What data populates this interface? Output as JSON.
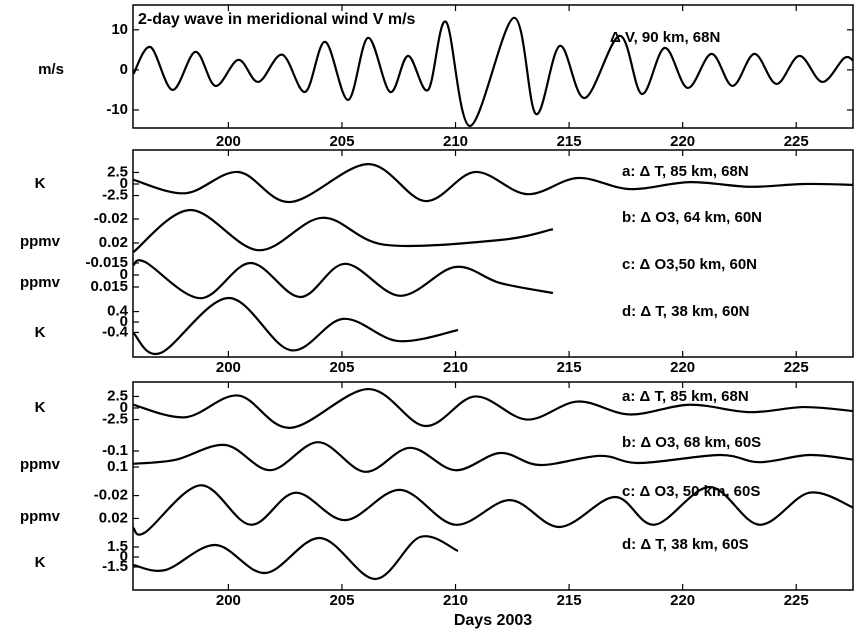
{
  "chart_data": [
    {
      "type": "line",
      "title": "2-day wave in meridional wind V m/s",
      "xlim": [
        195.8,
        227.5
      ],
      "xticks": [
        200,
        205,
        210,
        215,
        220,
        225
      ],
      "series": [
        {
          "name": "Δ V, 90 km, 68N",
          "color": "#000000",
          "ylabel": "m/s",
          "ylim": [
            -14.5,
            16.2
          ],
          "yticks": [
            -10,
            0,
            10
          ],
          "x": [
            195.82,
            196.57,
            197.54,
            198.55,
            199.43,
            200.44,
            201.32,
            202.37,
            203.38,
            204.26,
            205.27,
            206.15,
            207.12,
            207.91,
            208.79,
            209.58,
            210.64,
            212.57,
            213.54,
            214.59,
            215.69,
            217.23,
            218.2,
            219.21,
            220.22,
            221.27,
            222.2,
            223.16,
            224.13,
            225.14,
            226.15,
            227.12,
            227.56
          ],
          "values": [
            -1,
            5.7,
            -5,
            4.5,
            -4,
            2.5,
            -3,
            3.8,
            -5.5,
            7,
            -7.5,
            8,
            -5.5,
            3.5,
            -5,
            12,
            -14,
            13,
            -11,
            6,
            -7,
            8.5,
            -6,
            5.5,
            -4.5,
            4,
            -4,
            4,
            -3.5,
            3.5,
            -3,
            3,
            2
          ]
        }
      ]
    },
    {
      "type": "line",
      "xlim": [
        195.8,
        227.5
      ],
      "xticks": [
        200,
        205,
        210,
        215,
        220,
        225
      ],
      "series": [
        {
          "name": "a: Δ T, 85 km, 68N",
          "color": "#000000",
          "ylabel": "K",
          "ylim": [
            -5.2,
            5.2
          ],
          "yticks": [
            -2.5,
            0,
            2.5
          ],
          "x": [
            195.82,
            198.11,
            200.44,
            202.73,
            206.15,
            208.66,
            210.86,
            213.14,
            215.38,
            217.67,
            220.31,
            222.95,
            225.36,
            227.56
          ],
          "values": [
            0.9,
            -2,
            2.6,
            -3.9,
            4.3,
            -3.7,
            2.6,
            -2.2,
            1.3,
            -1.1,
            0.4,
            -0.6,
            0,
            -0.2
          ]
        },
        {
          "name": "b: Δ O3, 64 km, 60N",
          "color": "#000000",
          "ylabel": "ppmv",
          "ylim": [
            0.04,
            -0.04
          ],
          "yticks": [
            -0.02,
            0.02
          ],
          "x": [
            195.82,
            198.33,
            201.32,
            204.13,
            206.9,
            211.96,
            214.29
          ],
          "values": [
            0.035,
            -0.035,
            0.032,
            -0.022,
            0.023,
            0.015,
            -0.003
          ]
        },
        {
          "name": "c: Δ O3,50 km, 60N",
          "color": "#000000",
          "ylabel": "ppmv",
          "ylim": [
            0.03,
            -0.03
          ],
          "yticks": [
            -0.015,
            0,
            0.015
          ],
          "x": [
            195.82,
            196.35,
            198.77,
            200.97,
            203.16,
            205.14,
            207.56,
            209.98,
            211.96,
            214.29
          ],
          "values": [
            -0.0125,
            -0.016,
            0.029,
            -0.015,
            0.0275,
            -0.014,
            0.026,
            -0.01,
            0.01,
            0.0225
          ]
        },
        {
          "name": "d: Δ T, 38 km, 60N",
          "color": "#000000",
          "ylabel": "K",
          "ylim": [
            -0.92,
            0.92
          ],
          "yticks": [
            -0.4,
            0,
            0.4
          ],
          "x": [
            195.82,
            197.01,
            200.0,
            202.73,
            205.05,
            207.47,
            210.11
          ],
          "values": [
            -0.42,
            -1.19,
            0.92,
            -1.08,
            0.12,
            -0.73,
            -0.31
          ]
        }
      ]
    },
    {
      "type": "line",
      "xlabel": "Days 2003",
      "xlim": [
        195.8,
        227.5
      ],
      "xticks": [
        200,
        205,
        210,
        215,
        220,
        225
      ],
      "series": [
        {
          "name": "a: Δ T, 85 km, 68N",
          "color": "#000000",
          "ylabel": "K",
          "ylim": [
            -5.2,
            5.2
          ],
          "yticks": [
            -2.5,
            0,
            2.5
          ],
          "x": [
            195.82,
            198.11,
            200.44,
            202.73,
            206.15,
            208.66,
            210.86,
            213.14,
            215.38,
            217.67,
            220.31,
            222.95,
            225.36,
            227.56
          ],
          "values": [
            0.7,
            -2,
            2.7,
            -4.3,
            4.1,
            -3.9,
            2.5,
            -2.5,
            1.4,
            -1.4,
            0.7,
            -0.9,
            0.2,
            -0.7
          ]
        },
        {
          "name": "b: Δ O3, 68 km, 60S",
          "color": "#000000",
          "ylabel": "ppmv",
          "ylim": [
            0.3,
            -0.3
          ],
          "yticks": [
            -0.1,
            0.1
          ],
          "x": [
            195.82,
            197.67,
            199.87,
            201.85,
            203.96,
            206.02,
            208.0,
            209.98,
            211.96,
            213.71,
            216.35,
            218.11,
            221.63,
            223.38,
            225.58,
            227.56
          ],
          "values": [
            0.06,
            0.01,
            -0.175,
            0.14,
            -0.21,
            0.16,
            -0.14,
            0.14,
            -0.075,
            0.075,
            -0.04,
            0.05,
            -0.05,
            0.04,
            -0.05,
            0.01
          ]
        },
        {
          "name": "c: Δ O3, 50 km, 60S",
          "color": "#000000",
          "ylabel": "ppmv",
          "ylim": [
            0.042,
            -0.042
          ],
          "yticks": [
            -0.02,
            0.02
          ],
          "x": [
            195.82,
            196.35,
            198.77,
            200.97,
            202.95,
            205.14,
            207.56,
            209.98,
            212.4,
            214.59,
            217.01,
            218.77,
            221.19,
            223.38,
            225.58,
            227.56
          ],
          "values": [
            0.037,
            0.044,
            -0.038,
            0.031,
            -0.025,
            0.023,
            -0.03,
            0.031,
            -0.012,
            0.035,
            -0.0175,
            0.031,
            -0.035,
            0.031,
            -0.025,
            0.002
          ]
        },
        {
          "name": "d: Δ T, 38 km, 60S",
          "color": "#000000",
          "ylabel": "K",
          "ylim": [
            -3.6,
            3.6
          ],
          "yticks": [
            -1.5,
            0,
            1.5
          ],
          "x": [
            195.82,
            197.23,
            199.43,
            201.63,
            204.04,
            206.46,
            208.44,
            210.11
          ],
          "values": [
            -1.2,
            -1.95,
            1.8,
            -2.4,
            2.85,
            -3.3,
            3.0,
            0.9
          ]
        }
      ]
    }
  ]
}
